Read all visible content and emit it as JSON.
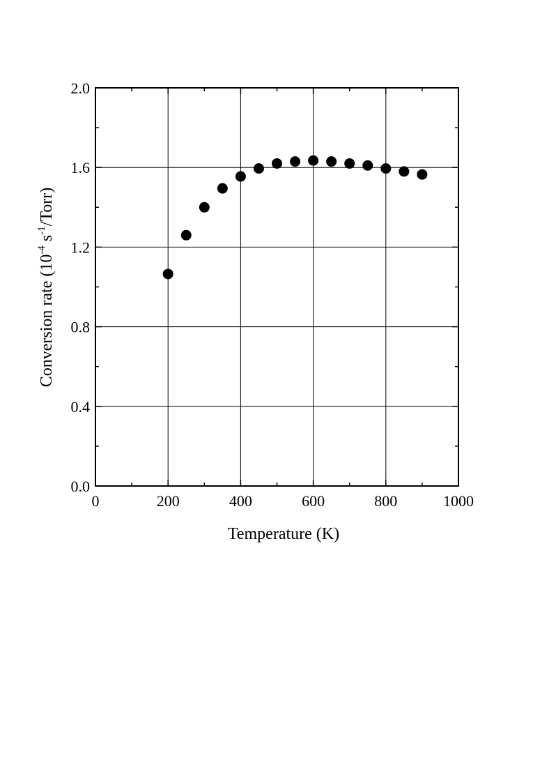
{
  "chart_data": {
    "type": "scatter",
    "title": "",
    "xlabel": "Temperature (K)",
    "ylabel": {
      "prefix": "Conversion rate (10",
      "exp1": "-4",
      "mid": " s",
      "exp2": "-1",
      "suffix": "/Torr)"
    },
    "xlim": [
      0,
      1000
    ],
    "ylim": [
      0.0,
      2.0
    ],
    "x_ticks": [
      0,
      200,
      400,
      600,
      800,
      1000
    ],
    "x_tick_labels": [
      "0",
      "200",
      "400",
      "600",
      "800",
      "1000"
    ],
    "y_ticks": [
      0.0,
      0.4,
      0.8,
      1.2,
      1.6,
      2.0
    ],
    "y_tick_labels": [
      "0.0",
      "0.4",
      "0.8",
      "1.2",
      "1.6",
      "2.0"
    ],
    "x_minor_step": 100,
    "y_minor_step": 0.2,
    "grid": true,
    "series": [
      {
        "name": "conversion rate",
        "color": "#000000",
        "marker": "filled-circle",
        "x": [
          200,
          250,
          300,
          350,
          400,
          450,
          500,
          550,
          600,
          650,
          700,
          750,
          800,
          850,
          900
        ],
        "y": [
          1.065,
          1.26,
          1.4,
          1.495,
          1.555,
          1.595,
          1.62,
          1.63,
          1.635,
          1.63,
          1.62,
          1.61,
          1.595,
          1.58,
          1.565
        ]
      }
    ]
  }
}
